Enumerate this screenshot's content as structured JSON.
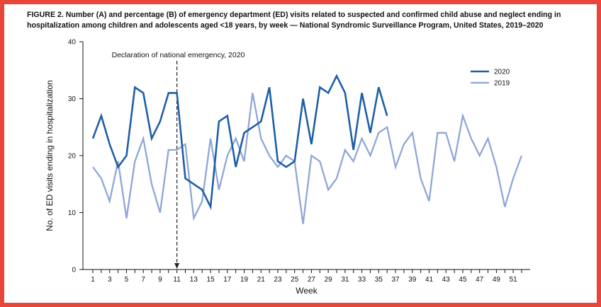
{
  "figure": {
    "title": "FIGURE 2. Number (A) and percentage (B) of emergency department (ED) visits related to suspected and confirmed child abuse and neglect ending in hospitalization among children and adolescents aged <18 years, by week — National Syndromic Surveillance Program, United States, 2019–2020"
  },
  "colors": {
    "frame": "#e9463a",
    "series_2020": "#1f5fa5",
    "series_2019": "#8fa6d8",
    "axis": "#111111"
  },
  "chart_data": {
    "type": "line",
    "xlabel": "Week",
    "ylabel": "No. of ED visits ending in hospitalization",
    "xlim": [
      0,
      52
    ],
    "ylim": [
      0,
      40
    ],
    "yticks": [
      0,
      10,
      20,
      30,
      40
    ],
    "xticks": [
      1,
      3,
      5,
      7,
      9,
      11,
      13,
      15,
      17,
      19,
      21,
      23,
      25,
      27,
      29,
      31,
      33,
      35,
      37,
      39,
      41,
      43,
      45,
      47,
      49,
      51
    ],
    "annotation": {
      "text": "Declaration of national emergency, 2020",
      "x": 11
    },
    "legend_position": "top-right",
    "series": [
      {
        "name": "2020",
        "color": "#1f5fa5",
        "x": [
          1,
          2,
          3,
          4,
          5,
          6,
          7,
          8,
          9,
          10,
          11,
          12,
          13,
          14,
          15,
          16,
          17,
          18,
          19,
          20,
          21,
          22,
          23,
          24,
          25,
          26,
          27,
          28,
          29,
          30,
          31,
          32,
          33,
          34,
          35,
          36
        ],
        "values": [
          23,
          27,
          22,
          18,
          20,
          32,
          31,
          23,
          26,
          31,
          31,
          16,
          15,
          14,
          11,
          26,
          27,
          18,
          24,
          25,
          26,
          32,
          19,
          18,
          19,
          30,
          22,
          32,
          31,
          34,
          31,
          21,
          31,
          24,
          32,
          27
        ]
      },
      {
        "name": "2019",
        "color": "#8fa6d8",
        "x": [
          1,
          2,
          3,
          4,
          5,
          6,
          7,
          8,
          9,
          10,
          11,
          12,
          13,
          14,
          15,
          16,
          17,
          18,
          19,
          20,
          21,
          22,
          23,
          24,
          25,
          26,
          27,
          28,
          29,
          30,
          31,
          32,
          33,
          34,
          35,
          36,
          37,
          38,
          39,
          40,
          41,
          42,
          43,
          44,
          45,
          46,
          47,
          48,
          49,
          50,
          51,
          52
        ],
        "values": [
          18,
          16,
          12,
          19,
          9,
          19,
          23,
          15,
          10,
          21,
          21,
          22,
          9,
          12,
          23,
          14,
          20,
          23,
          19,
          31,
          23,
          20,
          18,
          20,
          19,
          8,
          20,
          19,
          14,
          16,
          21,
          19,
          23,
          20,
          24,
          25,
          18,
          22,
          24,
          16,
          12,
          24,
          24,
          19,
          27,
          23,
          20,
          23,
          18,
          11,
          16,
          20
        ]
      }
    ]
  }
}
